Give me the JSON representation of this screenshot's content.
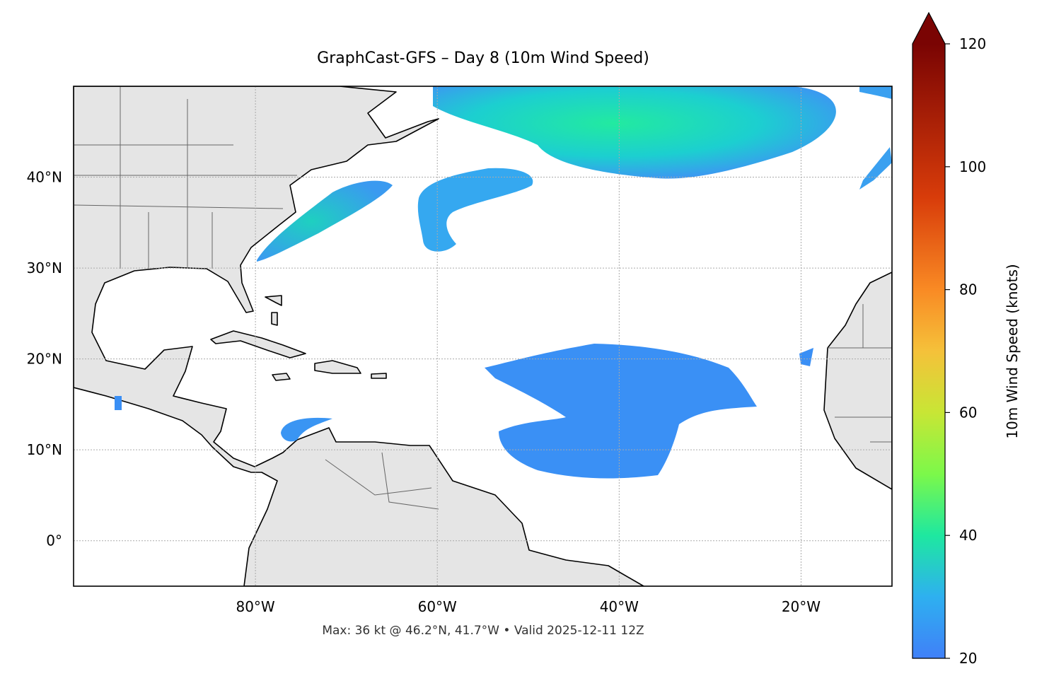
{
  "title": "GraphCast-GFS – Day 8 (10m Wind Speed)",
  "footer": "Max: 36 kt @ 46.2°N, 41.7°W • Valid 2025-12-11 12Z",
  "map": {
    "lon_range": [
      -100,
      -10
    ],
    "lat_range": [
      -5,
      50
    ],
    "lon_ticks": [
      {
        "value": -80,
        "label": "80°W"
      },
      {
        "value": -60,
        "label": "60°W"
      },
      {
        "value": -40,
        "label": "40°W"
      },
      {
        "value": -20,
        "label": "20°W"
      }
    ],
    "lat_ticks": [
      {
        "value": 0,
        "label": "0°"
      },
      {
        "value": 10,
        "label": "10°N"
      },
      {
        "value": 20,
        "label": "20°N"
      },
      {
        "value": 30,
        "label": "30°N"
      },
      {
        "value": 40,
        "label": "40°N"
      }
    ]
  },
  "colorbar": {
    "label": "10m Wind Speed (knots)",
    "lim": [
      20,
      120
    ],
    "ticks": [
      20,
      40,
      60,
      80,
      100,
      120
    ]
  }
}
